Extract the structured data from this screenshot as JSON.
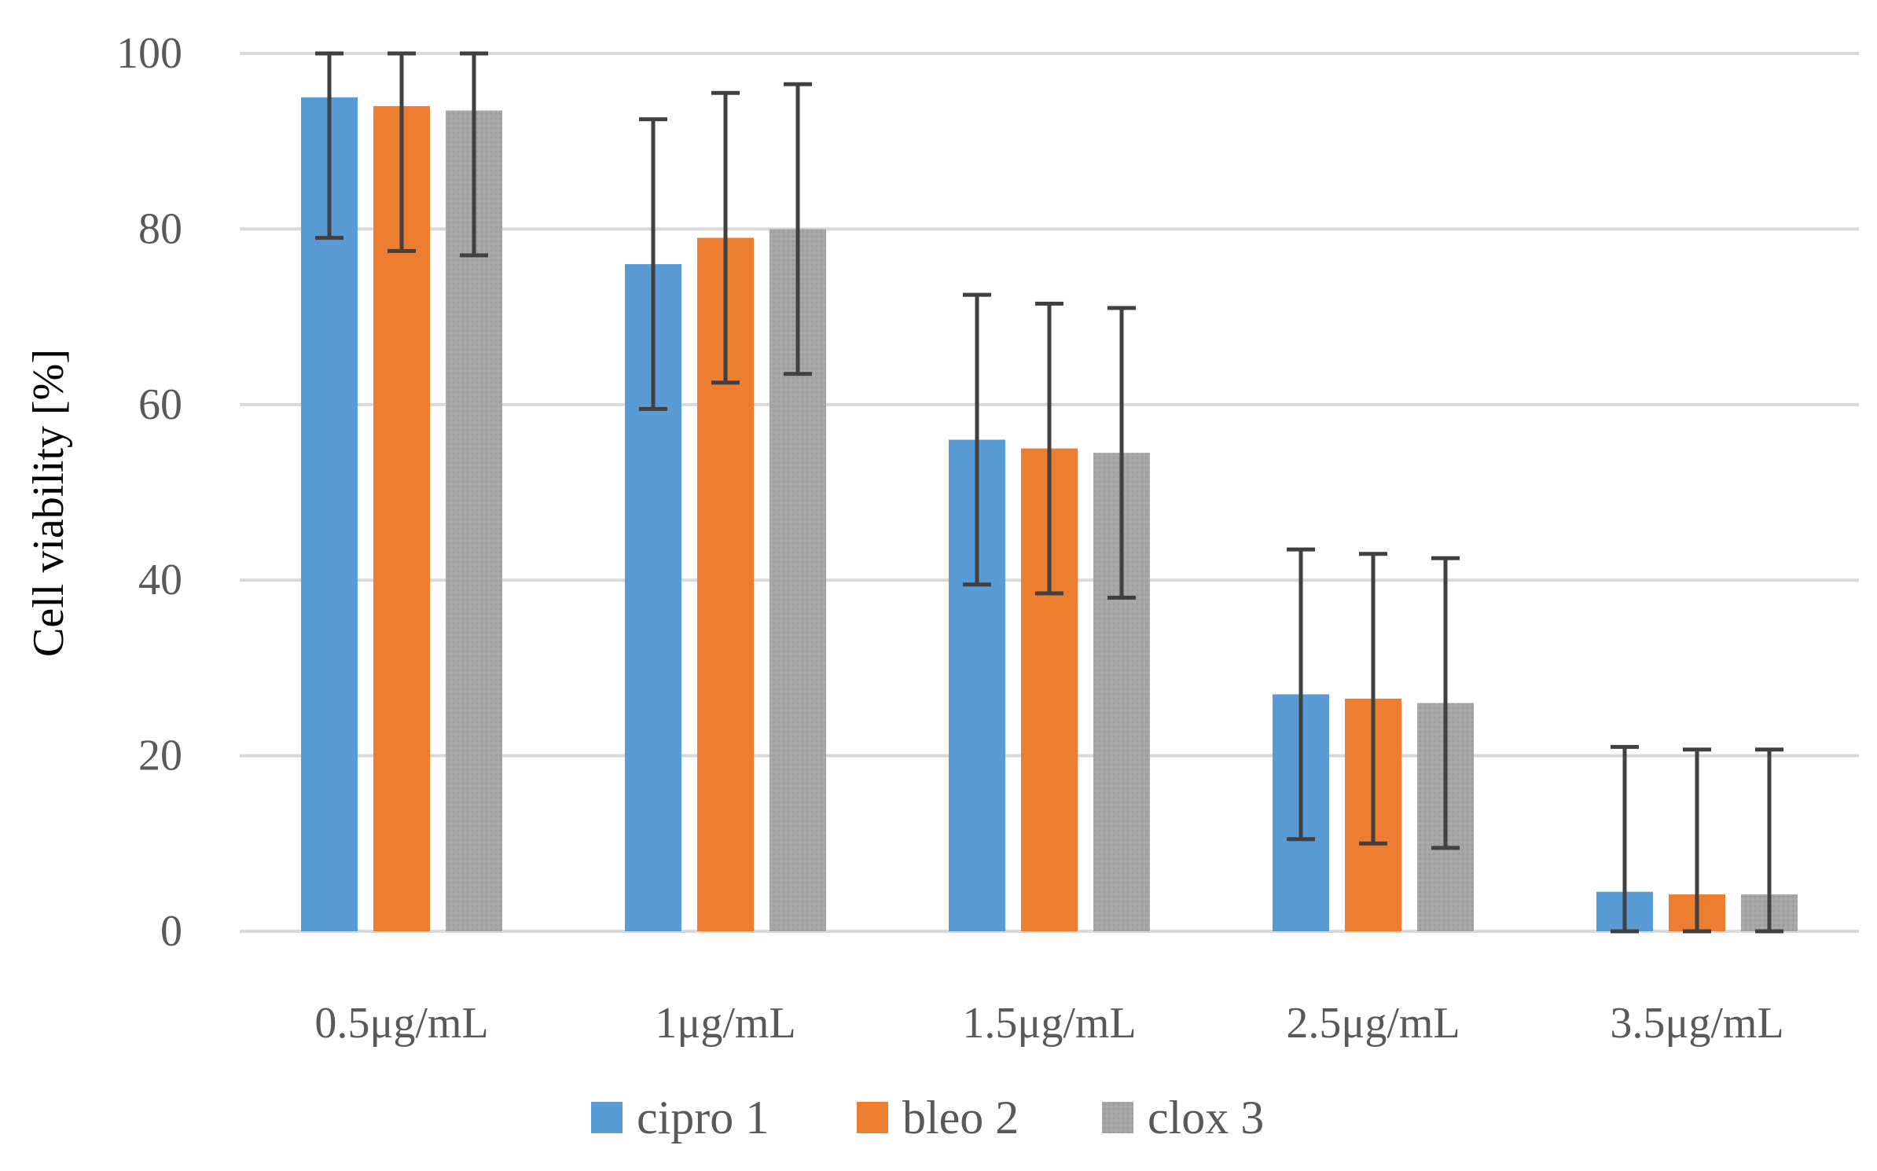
{
  "chart_data": {
    "type": "bar",
    "title": "",
    "xlabel": "",
    "ylabel": "Cell viability [%]",
    "ylim": [
      0,
      100
    ],
    "yticks": [
      0,
      20,
      40,
      60,
      80,
      100
    ],
    "ytick_labels": [
      "0",
      "20",
      "40",
      "60",
      "80",
      "100"
    ],
    "grid": true,
    "legend_position": "bottom",
    "categories": [
      "0.5μg/mL",
      "1μg/mL",
      "1.5μg/mL",
      "2.5μg/mL",
      "3.5μg/mL"
    ],
    "series": [
      {
        "name": "cipro 1",
        "color": "#5b9bd5",
        "values": [
          95,
          76,
          56,
          27,
          4.5
        ],
        "error": [
          16,
          16.5,
          16.5,
          16.5,
          16.5
        ]
      },
      {
        "name": "bleo 2",
        "color": "#ed7d31",
        "values": [
          94,
          79,
          55,
          26.5,
          4.2
        ],
        "error": [
          16.5,
          16.5,
          16.5,
          16.5,
          16.5
        ]
      },
      {
        "name": "clox 3",
        "color": "#a5a5a5",
        "values": [
          93.5,
          80,
          54.5,
          26,
          4.2
        ],
        "error": [
          16.5,
          16.5,
          16.5,
          16.5,
          16.5
        ]
      }
    ]
  }
}
